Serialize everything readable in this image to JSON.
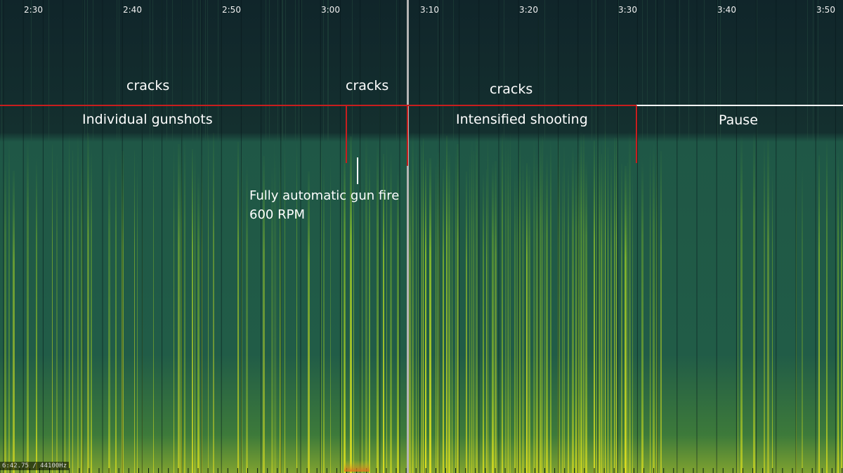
{
  "time_axis": {
    "ticks": [
      "2:30",
      "2:40",
      "2:50",
      "3:00",
      "3:10",
      "3:20",
      "3:30",
      "3:40",
      "3:50"
    ]
  },
  "annotations": {
    "cracks_1": "cracks",
    "cracks_2": "cracks",
    "cracks_3": "cracks",
    "segment_individual": "Individual gunshots",
    "segment_intensified": "Intensified shooting",
    "segment_pause": "Pause",
    "auto_fire_line1": "Fully automatic gun fire",
    "auto_fire_line2": "600 RPM"
  },
  "status_readout": "6:42.75 / 44100Hz",
  "colors": {
    "background": "#0f2428",
    "spectrogram_base": "#1f5a48",
    "energy_high": "#c8d820",
    "segment_line_red": "#c81e1e",
    "segment_line_white": "#ffffff",
    "playhead": "#b4b4b4"
  }
}
